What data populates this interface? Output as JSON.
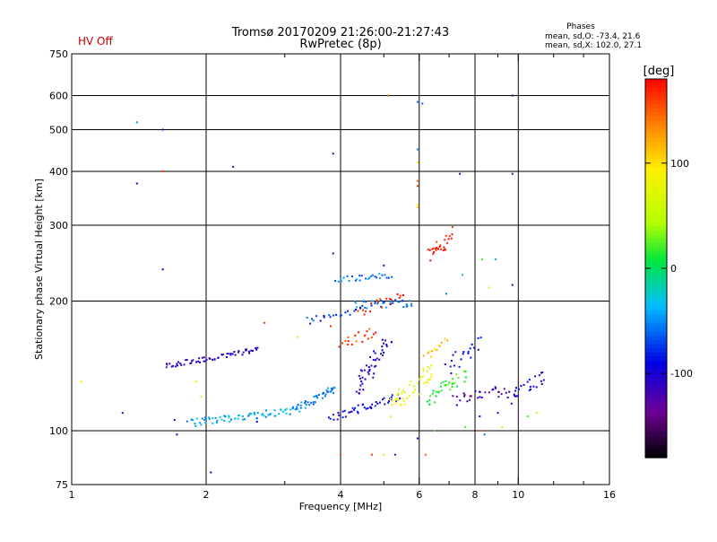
{
  "status_label": "HV Off",
  "title_line1": "Tromsø 20170209 21:26:00-21:27:43",
  "title_line2": "RwPretec (8p)",
  "phases": {
    "heading": "Phases",
    "line_o": "mean, sd,O: -73.4, 21.6",
    "line_x": "mean, sd,X: 102.0, 27.1"
  },
  "colorbar": {
    "unit_label": "[deg]",
    "tick_labels": [
      "100",
      "0",
      "-100"
    ],
    "ticks": [
      100,
      0,
      -100
    ],
    "range": [
      -180,
      180
    ]
  },
  "colors": {
    "status": "#cc0000",
    "grid": "#000000"
  },
  "chart_data": {
    "type": "scatter",
    "xlabel": "Frequency [MHz]",
    "ylabel": "Stationary phase Virtual Height [km]",
    "xscale": "log",
    "yscale": "log",
    "xlim": [
      1,
      16
    ],
    "ylim": [
      75,
      750
    ],
    "xticks": [
      1,
      2,
      4,
      6,
      8,
      10,
      16
    ],
    "xtick_labels": [
      "1",
      "2",
      "4",
      "6",
      "8",
      "10",
      "16"
    ],
    "yticks": [
      75,
      100,
      200,
      300,
      400,
      500,
      600,
      750
    ],
    "ytick_labels": [
      "75",
      "100",
      "200",
      "300",
      "400",
      "500",
      "600",
      "750"
    ],
    "xgrid": [
      2,
      4,
      6,
      8,
      10
    ],
    "ygrid": [
      100,
      200,
      300,
      400,
      500,
      600
    ],
    "color_scale": "phase (deg), rainbow from -180 (black) to 180 (red)",
    "traces": [
      {
        "from": [
          1.62,
          141
        ],
        "to": [
          2.62,
          155
        ],
        "n": 60,
        "spread": 0.015,
        "phase": -110
      },
      {
        "from": [
          1.82,
          104
        ],
        "to": [
          3.2,
          112
        ],
        "n": 70,
        "spread": 0.02,
        "phase": -40
      },
      {
        "from": [
          3.2,
          112
        ],
        "to": [
          3.9,
          125
        ],
        "n": 40,
        "spread": 0.025,
        "phase": -55
      },
      {
        "from": [
          3.8,
          107
        ],
        "to": [
          5.4,
          120
        ],
        "n": 45,
        "spread": 0.02,
        "phase": -95
      },
      {
        "from": [
          4.3,
          196
        ],
        "to": [
          5.8,
          198
        ],
        "n": 40,
        "spread": 0.02,
        "phase": -60
      },
      {
        "from": [
          3.35,
          180
        ],
        "to": [
          4.4,
          190
        ],
        "n": 20,
        "spread": 0.02,
        "phase": -75
      },
      {
        "from": [
          3.9,
          224
        ],
        "to": [
          5.2,
          230
        ],
        "n": 28,
        "spread": 0.015,
        "phase": -55
      },
      {
        "from": [
          4.35,
          125
        ],
        "to": [
          5.1,
          160
        ],
        "n": 45,
        "spread": 0.05,
        "phase": -105
      },
      {
        "from": [
          4.4,
          190
        ],
        "to": [
          5.5,
          205
        ],
        "n": 18,
        "spread": 0.03,
        "phase": 170
      },
      {
        "from": [
          4.0,
          160
        ],
        "to": [
          4.8,
          170
        ],
        "n": 20,
        "spread": 0.03,
        "phase": 160
      },
      {
        "from": [
          5.2,
          112
        ],
        "to": [
          6.4,
          140
        ],
        "n": 45,
        "spread": 0.05,
        "phase": 80
      },
      {
        "from": [
          6.3,
          118
        ],
        "to": [
          7.6,
          135
        ],
        "n": 35,
        "spread": 0.04,
        "phase": 20
      },
      {
        "from": [
          7.2,
          118
        ],
        "to": [
          9.5,
          125
        ],
        "n": 30,
        "spread": 0.03,
        "phase": -120
      },
      {
        "from": [
          9.5,
          120
        ],
        "to": [
          11.5,
          135
        ],
        "n": 25,
        "spread": 0.04,
        "phase": -100
      },
      {
        "from": [
          6.4,
          255
        ],
        "to": [
          7.1,
          290
        ],
        "n": 18,
        "spread": 0.03,
        "phase": 165
      },
      {
        "from": [
          6.3,
          265
        ],
        "to": [
          6.9,
          265
        ],
        "n": 10,
        "spread": 0.01,
        "phase": 175
      },
      {
        "from": [
          7.0,
          140
        ],
        "to": [
          8.2,
          160
        ],
        "n": 20,
        "spread": 0.05,
        "phase": -95
      },
      {
        "from": [
          6.2,
          150
        ],
        "to": [
          6.9,
          160
        ],
        "n": 12,
        "spread": 0.03,
        "phase": 110
      }
    ],
    "points": [
      {
        "x": 1.4,
        "y": 520,
        "phase": -50
      },
      {
        "x": 1.6,
        "y": 500,
        "phase": -110
      },
      {
        "x": 1.4,
        "y": 375,
        "phase": -90
      },
      {
        "x": 1.6,
        "y": 400,
        "phase": 160
      },
      {
        "x": 2.3,
        "y": 410,
        "phase": -100
      },
      {
        "x": 1.6,
        "y": 237,
        "phase": -100
      },
      {
        "x": 1.3,
        "y": 110,
        "phase": -100
      },
      {
        "x": 1.05,
        "y": 130,
        "phase": 100
      },
      {
        "x": 1.7,
        "y": 106,
        "phase": -100
      },
      {
        "x": 1.72,
        "y": 98,
        "phase": -100
      },
      {
        "x": 2.05,
        "y": 80,
        "phase": -100
      },
      {
        "x": 3.85,
        "y": 440,
        "phase": -110
      },
      {
        "x": 3.85,
        "y": 258,
        "phase": -110
      },
      {
        "x": 5.1,
        "y": 600,
        "phase": 150
      },
      {
        "x": 5.95,
        "y": 580,
        "phase": -60
      },
      {
        "x": 6.1,
        "y": 575,
        "phase": -60
      },
      {
        "x": 5.95,
        "y": 450,
        "phase": -50
      },
      {
        "x": 5.95,
        "y": 420,
        "phase": 100
      },
      {
        "x": 5.95,
        "y": 380,
        "phase": 150
      },
      {
        "x": 5.95,
        "y": 370,
        "phase": 170
      },
      {
        "x": 5.95,
        "y": 335,
        "phase": 90
      },
      {
        "x": 5.95,
        "y": 330,
        "phase": 110
      },
      {
        "x": 7.4,
        "y": 395,
        "phase": -110
      },
      {
        "x": 9.7,
        "y": 600,
        "phase": -100
      },
      {
        "x": 9.7,
        "y": 395,
        "phase": -110
      },
      {
        "x": 9.7,
        "y": 218,
        "phase": -100
      },
      {
        "x": 8.3,
        "y": 250,
        "phase": 20
      },
      {
        "x": 8.9,
        "y": 250,
        "phase": -40
      },
      {
        "x": 8.6,
        "y": 215,
        "phase": 60
      },
      {
        "x": 7.5,
        "y": 230,
        "phase": -30
      },
      {
        "x": 6.9,
        "y": 208,
        "phase": -50
      },
      {
        "x": 5.0,
        "y": 242,
        "phase": -100
      },
      {
        "x": 3.8,
        "y": 175,
        "phase": 170
      },
      {
        "x": 3.2,
        "y": 165,
        "phase": 100
      },
      {
        "x": 2.7,
        "y": 178,
        "phase": 160
      },
      {
        "x": 2.6,
        "y": 105,
        "phase": -100
      },
      {
        "x": 5.95,
        "y": 96,
        "phase": -100
      },
      {
        "x": 6.5,
        "y": 100,
        "phase": 20
      },
      {
        "x": 7.6,
        "y": 102,
        "phase": 20
      },
      {
        "x": 8.3,
        "y": 100,
        "phase": 150
      },
      {
        "x": 8.4,
        "y": 98,
        "phase": -60
      },
      {
        "x": 9.2,
        "y": 102,
        "phase": 100
      },
      {
        "x": 10.5,
        "y": 108,
        "phase": 20
      },
      {
        "x": 11.0,
        "y": 110,
        "phase": 100
      },
      {
        "x": 4.7,
        "y": 88,
        "phase": 160
      },
      {
        "x": 5.0,
        "y": 88,
        "phase": 40
      },
      {
        "x": 5.3,
        "y": 88,
        "phase": -100
      },
      {
        "x": 6.2,
        "y": 88,
        "phase": 150
      },
      {
        "x": 4.0,
        "y": 88,
        "phase": 160
      },
      {
        "x": 8.2,
        "y": 108,
        "phase": -100
      },
      {
        "x": 9.0,
        "y": 110,
        "phase": -100
      },
      {
        "x": 1.95,
        "y": 120,
        "phase": 100
      },
      {
        "x": 1.9,
        "y": 130,
        "phase": 60
      }
    ]
  }
}
